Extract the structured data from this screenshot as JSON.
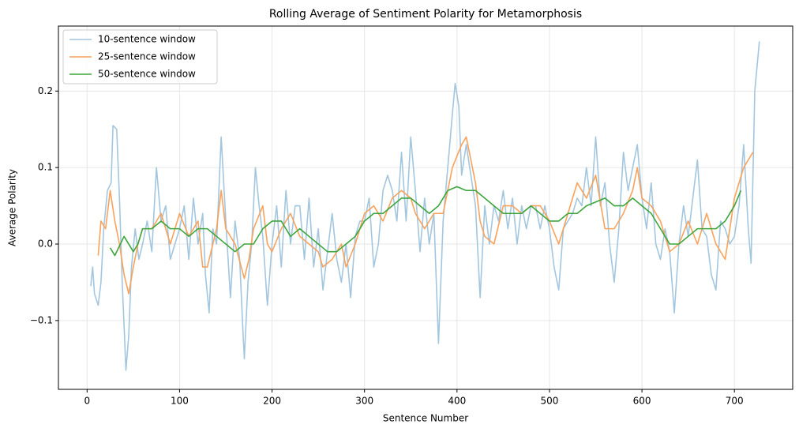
{
  "chart_data": {
    "type": "line",
    "title": "Rolling Average of Sentiment Polarity for Metamorphosis",
    "x_label": "Sentence Number",
    "y_label": "Average Polarity",
    "xlim": [
      -31,
      763
    ],
    "ylim": [
      -0.19,
      0.285
    ],
    "xticks": [
      0,
      100,
      200,
      300,
      400,
      500,
      600,
      700
    ],
    "yticks": [
      {
        "value": -0.1,
        "label": "−0.1"
      },
      {
        "value": 0,
        "label": "0.0"
      },
      {
        "value": 0.1,
        "label": "0.1"
      },
      {
        "value": 0.2,
        "label": "0.2"
      }
    ],
    "grid": true,
    "legend": "upper left",
    "series": [
      {
        "name": "10-sentence window",
        "color": "#a3c6df",
        "x": [
          4,
          6,
          8,
          12,
          15,
          18,
          22,
          26,
          28,
          32,
          35,
          38,
          42,
          45,
          48,
          52,
          56,
          60,
          65,
          70,
          75,
          80,
          85,
          90,
          95,
          100,
          105,
          110,
          115,
          120,
          125,
          128,
          132,
          136,
          140,
          145,
          150,
          155,
          160,
          165,
          168,
          170,
          174,
          178,
          182,
          186,
          190,
          195,
          200,
          205,
          210,
          215,
          220,
          225,
          230,
          235,
          240,
          245,
          250,
          255,
          260,
          265,
          270,
          275,
          280,
          285,
          290,
          295,
          300,
          305,
          310,
          315,
          320,
          325,
          330,
          335,
          340,
          345,
          350,
          355,
          360,
          365,
          370,
          375,
          380,
          385,
          390,
          395,
          398,
          402,
          405,
          410,
          415,
          420,
          425,
          430,
          435,
          440,
          445,
          450,
          455,
          460,
          465,
          470,
          475,
          480,
          485,
          490,
          495,
          500,
          505,
          510,
          515,
          520,
          525,
          530,
          535,
          540,
          545,
          550,
          555,
          560,
          565,
          570,
          575,
          580,
          585,
          590,
          595,
          600,
          605,
          610,
          615,
          620,
          625,
          630,
          635,
          640,
          645,
          650,
          655,
          660,
          665,
          670,
          675,
          680,
          685,
          690,
          695,
          700,
          705,
          710,
          715,
          718,
          722,
          727
        ],
        "values": [
          -0.055,
          -0.03,
          -0.065,
          -0.08,
          -0.05,
          0.02,
          0.07,
          0.08,
          0.155,
          0.15,
          0.06,
          -0.05,
          -0.165,
          -0.12,
          -0.03,
          0.02,
          -0.02,
          0.0,
          0.03,
          -0.01,
          0.1,
          0.03,
          0.05,
          -0.02,
          0.0,
          0.02,
          0.05,
          -0.02,
          0.06,
          0.0,
          0.04,
          -0.04,
          -0.09,
          0.02,
          0.0,
          0.14,
          0.03,
          -0.07,
          0.03,
          -0.02,
          -0.1,
          -0.15,
          -0.05,
          0.0,
          0.1,
          0.05,
          0.01,
          -0.08,
          0.0,
          0.05,
          -0.03,
          0.07,
          0.0,
          0.05,
          0.05,
          -0.02,
          0.06,
          -0.03,
          0.02,
          -0.06,
          -0.01,
          0.04,
          -0.02,
          -0.05,
          0.0,
          -0.07,
          0.01,
          0.03,
          0.03,
          0.06,
          -0.03,
          0.0,
          0.07,
          0.09,
          0.07,
          0.03,
          0.12,
          0.03,
          0.14,
          0.07,
          -0.01,
          0.06,
          0.0,
          0.04,
          -0.13,
          0.03,
          0.1,
          0.17,
          0.21,
          0.18,
          0.09,
          0.13,
          0.09,
          0.05,
          -0.07,
          0.05,
          0.0,
          0.05,
          0.03,
          0.07,
          0.02,
          0.06,
          0.0,
          0.05,
          0.02,
          0.05,
          0.05,
          0.02,
          0.05,
          0.02,
          -0.03,
          -0.06,
          0.02,
          0.03,
          0.04,
          0.06,
          0.05,
          0.1,
          0.05,
          0.14,
          0.05,
          0.08,
          0.0,
          -0.05,
          0.02,
          0.12,
          0.07,
          0.1,
          0.13,
          0.06,
          0.02,
          0.08,
          0.0,
          -0.02,
          0.02,
          -0.01,
          -0.09,
          0.0,
          0.05,
          0.01,
          0.06,
          0.11,
          0.02,
          0.01,
          -0.04,
          -0.06,
          0.03,
          0.02,
          0.0,
          0.01,
          0.05,
          0.13,
          0.02,
          -0.025,
          0.2,
          0.265
        ]
      },
      {
        "name": "25-sentence window",
        "color": "#f9a25c",
        "x": [
          12,
          15,
          20,
          25,
          30,
          35,
          40,
          45,
          50,
          55,
          60,
          70,
          80,
          90,
          100,
          110,
          120,
          125,
          130,
          140,
          145,
          150,
          160,
          170,
          175,
          180,
          190,
          195,
          200,
          210,
          220,
          230,
          240,
          250,
          255,
          265,
          275,
          280,
          290,
          300,
          310,
          320,
          330,
          340,
          350,
          355,
          365,
          375,
          385,
          395,
          405,
          410,
          420,
          425,
          430,
          440,
          450,
          460,
          470,
          480,
          490,
          500,
          510,
          520,
          530,
          540,
          550,
          560,
          570,
          580,
          590,
          595,
          600,
          610,
          620,
          630,
          640,
          650,
          660,
          670,
          680,
          690,
          700,
          710,
          715,
          720
        ],
        "values": [
          -0.015,
          0.03,
          0.02,
          0.07,
          0.03,
          0.0,
          -0.04,
          -0.065,
          -0.03,
          0.0,
          0.02,
          0.02,
          0.04,
          0.0,
          0.04,
          0.01,
          0.03,
          -0.03,
          -0.03,
          0.02,
          0.07,
          0.02,
          0.0,
          -0.045,
          -0.02,
          0.02,
          0.05,
          0.0,
          -0.01,
          0.02,
          0.04,
          0.01,
          0.0,
          -0.01,
          -0.03,
          -0.02,
          0.0,
          -0.03,
          0.0,
          0.04,
          0.05,
          0.03,
          0.06,
          0.07,
          0.06,
          0.04,
          0.02,
          0.04,
          0.04,
          0.1,
          0.13,
          0.14,
          0.08,
          0.03,
          0.01,
          0.0,
          0.05,
          0.05,
          0.04,
          0.05,
          0.05,
          0.03,
          0.0,
          0.04,
          0.08,
          0.06,
          0.09,
          0.02,
          0.02,
          0.04,
          0.07,
          0.1,
          0.06,
          0.05,
          0.03,
          -0.01,
          0.0,
          0.03,
          0.0,
          0.04,
          0.0,
          -0.02,
          0.06,
          0.1,
          0.11,
          0.12
        ]
      },
      {
        "name": "50-sentence window",
        "color": "#3ca53c",
        "x": [
          25,
          30,
          40,
          50,
          55,
          60,
          70,
          80,
          90,
          100,
          110,
          120,
          130,
          140,
          150,
          160,
          170,
          180,
          190,
          200,
          210,
          220,
          230,
          240,
          250,
          260,
          270,
          280,
          290,
          300,
          310,
          320,
          330,
          340,
          350,
          360,
          370,
          380,
          390,
          400,
          410,
          420,
          430,
          440,
          450,
          460,
          470,
          480,
          490,
          500,
          510,
          520,
          530,
          540,
          550,
          560,
          570,
          580,
          590,
          600,
          610,
          620,
          630,
          640,
          650,
          660,
          670,
          680,
          690,
          700,
          707
        ],
        "values": [
          -0.005,
          -0.015,
          0.01,
          -0.01,
          0.0,
          0.02,
          0.02,
          0.03,
          0.02,
          0.02,
          0.01,
          0.02,
          0.02,
          0.01,
          0.0,
          -0.01,
          0.0,
          0.0,
          0.02,
          0.03,
          0.03,
          0.01,
          0.02,
          0.01,
          0.0,
          -0.01,
          -0.01,
          0.0,
          0.01,
          0.03,
          0.04,
          0.04,
          0.05,
          0.06,
          0.06,
          0.05,
          0.04,
          0.05,
          0.07,
          0.075,
          0.07,
          0.07,
          0.06,
          0.05,
          0.04,
          0.04,
          0.04,
          0.05,
          0.04,
          0.03,
          0.03,
          0.04,
          0.04,
          0.05,
          0.055,
          0.06,
          0.05,
          0.05,
          0.06,
          0.05,
          0.04,
          0.02,
          0.0,
          0.0,
          0.01,
          0.02,
          0.02,
          0.02,
          0.03,
          0.05,
          0.07
        ]
      }
    ]
  }
}
